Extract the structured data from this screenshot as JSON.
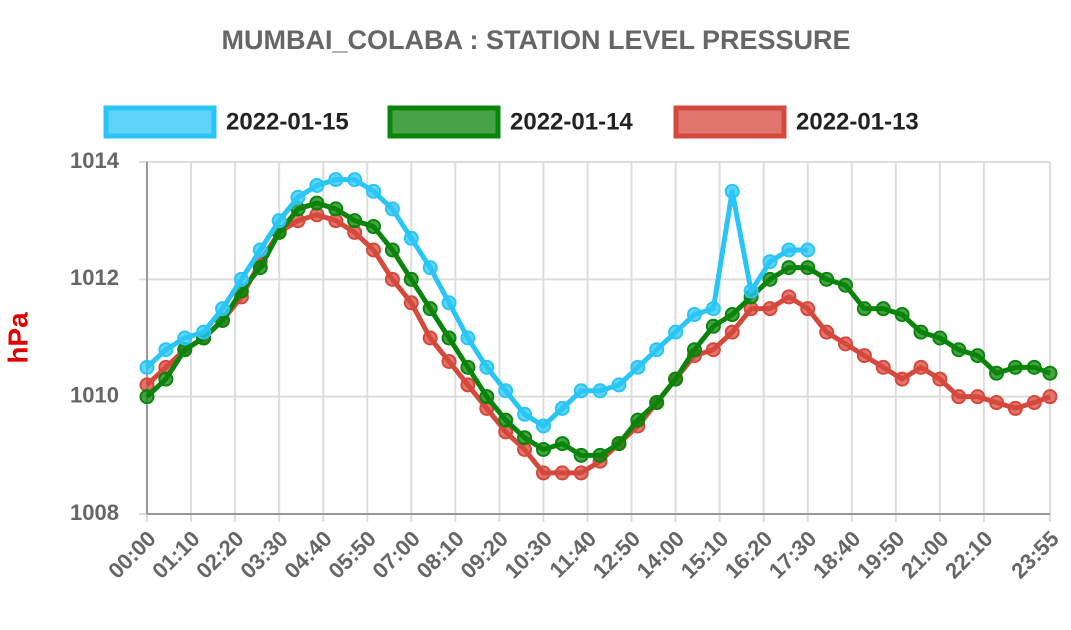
{
  "chart_data": {
    "type": "line",
    "title": "MUMBAI_COLABA : STATION LEVEL PRESSURE",
    "ylabel": "hPa",
    "x": [
      0,
      30,
      60,
      90,
      120,
      150,
      180,
      210,
      240,
      270,
      300,
      330,
      360,
      390,
      420,
      450,
      480,
      510,
      540,
      570,
      600,
      630,
      660,
      690,
      720,
      750,
      780,
      810,
      840,
      870,
      900,
      930,
      960,
      990,
      1020,
      1050,
      1080,
      1110,
      1140,
      1170,
      1200,
      1230,
      1260,
      1290,
      1320,
      1350,
      1380,
      1410,
      1435
    ],
    "xlim": [
      0,
      1435
    ],
    "xticks": [
      {
        "value": 0,
        "label": "00:00"
      },
      {
        "value": 70,
        "label": "01:10"
      },
      {
        "value": 140,
        "label": "02:20"
      },
      {
        "value": 210,
        "label": "03:30"
      },
      {
        "value": 280,
        "label": "04:40"
      },
      {
        "value": 350,
        "label": "05:50"
      },
      {
        "value": 420,
        "label": "07:00"
      },
      {
        "value": 490,
        "label": "08:10"
      },
      {
        "value": 560,
        "label": "09:20"
      },
      {
        "value": 630,
        "label": "10:30"
      },
      {
        "value": 700,
        "label": "11:40"
      },
      {
        "value": 770,
        "label": "12:50"
      },
      {
        "value": 840,
        "label": "14:00"
      },
      {
        "value": 910,
        "label": "15:10"
      },
      {
        "value": 980,
        "label": "16:20"
      },
      {
        "value": 1050,
        "label": "17:30"
      },
      {
        "value": 1120,
        "label": "18:40"
      },
      {
        "value": 1190,
        "label": "19:50"
      },
      {
        "value": 1260,
        "label": "21:00"
      },
      {
        "value": 1330,
        "label": "22:10"
      },
      {
        "value": 1435,
        "label": "23:55"
      }
    ],
    "ylim": [
      1008,
      1014
    ],
    "yticks": [
      1008,
      1010,
      1012,
      1014
    ],
    "grid": true,
    "legend": "top",
    "series": [
      {
        "name": "2022-01-15",
        "color": "#29c5f6",
        "values": [
          1010.5,
          1010.8,
          1011.0,
          1011.1,
          1011.5,
          1012.0,
          1012.5,
          1013.0,
          1013.4,
          1013.6,
          1013.7,
          1013.7,
          1013.5,
          1013.2,
          1012.7,
          1012.2,
          1011.6,
          1011.0,
          1010.5,
          1010.1,
          1009.7,
          1009.5,
          1009.8,
          1010.1,
          1010.1,
          1010.2,
          1010.5,
          1010.8,
          1011.1,
          1011.4,
          1011.5,
          1013.5,
          1011.8,
          1012.3,
          1012.5,
          1012.5,
          null,
          null,
          null,
          null,
          null,
          null,
          null,
          null,
          null,
          null,
          null,
          null,
          null
        ]
      },
      {
        "name": "2022-01-14",
        "color": "#0a840a",
        "values": [
          1010.0,
          1010.3,
          1010.8,
          1011.0,
          1011.3,
          1011.8,
          1012.2,
          1012.8,
          1013.2,
          1013.3,
          1013.2,
          1013.0,
          1012.9,
          1012.5,
          1012.0,
          1011.5,
          1011.0,
          1010.5,
          1010.0,
          1009.6,
          1009.3,
          1009.1,
          1009.2,
          1009.0,
          1009.0,
          1009.2,
          1009.6,
          1009.9,
          1010.3,
          1010.8,
          1011.2,
          1011.4,
          1011.7,
          1012.0,
          1012.2,
          1012.2,
          1012.0,
          1011.9,
          1011.5,
          1011.5,
          1011.4,
          1011.1,
          1011.0,
          1010.8,
          1010.7,
          1010.4,
          1010.5,
          1010.5,
          1010.4
        ]
      },
      {
        "name": "2022-01-13",
        "color": "#d5483c",
        "values": [
          1010.2,
          1010.5,
          1010.8,
          1011.0,
          1011.3,
          1011.7,
          1012.3,
          1012.8,
          1013.0,
          1013.1,
          1013.0,
          1012.8,
          1012.5,
          1012.0,
          1011.6,
          1011.0,
          1010.6,
          1010.2,
          1009.8,
          1009.4,
          1009.1,
          1008.7,
          1008.7,
          1008.7,
          1008.9,
          1009.2,
          1009.5,
          1009.9,
          1010.3,
          1010.7,
          1010.8,
          1011.1,
          1011.5,
          1011.5,
          1011.7,
          1011.5,
          1011.1,
          1010.9,
          1010.7,
          1010.5,
          1010.3,
          1010.5,
          1010.3,
          1010.0,
          1010.0,
          1009.9,
          1009.8,
          1009.9,
          1010.0
        ]
      }
    ]
  }
}
